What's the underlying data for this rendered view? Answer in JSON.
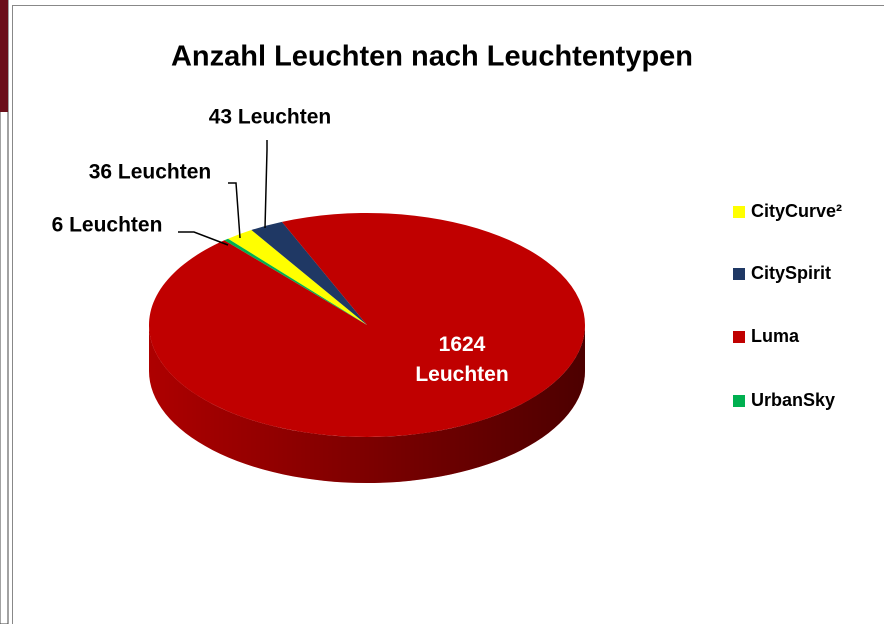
{
  "chart_data": {
    "type": "pie",
    "title": "Anzahl Leuchten nach Leuchtentypen",
    "categories": [
      "CityCurve²",
      "CitySpirit",
      "Luma",
      "UrbanSky"
    ],
    "values": [
      36,
      43,
      1624,
      6
    ],
    "value_labels": [
      "36 Leuchten",
      "43 Leuchten",
      "1624 Leuchten",
      "6 Leuchten"
    ],
    "colors": [
      "#ffff00",
      "#1f3864",
      "#c00000",
      "#00b050"
    ],
    "legend": "right"
  }
}
